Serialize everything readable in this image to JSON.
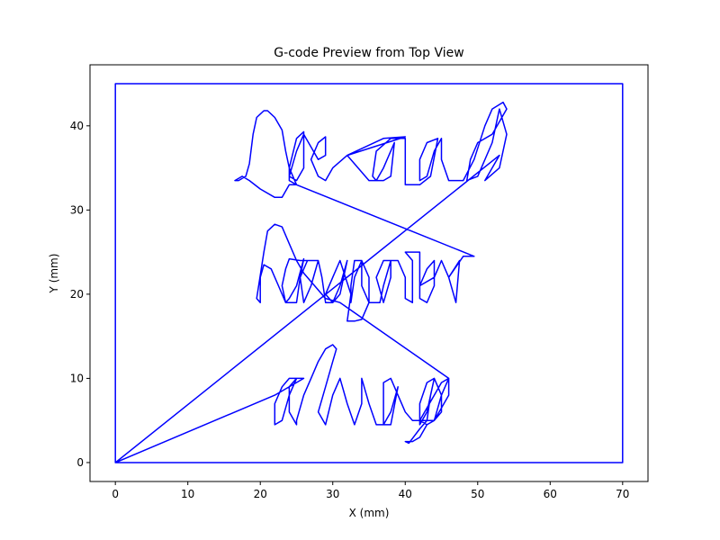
{
  "chart_data": {
    "type": "line",
    "title": "G-code Preview from Top View",
    "xlabel": "X (mm)",
    "ylabel": "Y (mm)",
    "xlim": [
      -3.5,
      73.5
    ],
    "ylim": [
      -2.25,
      47.25
    ],
    "xticks": [
      0,
      10,
      20,
      30,
      40,
      50,
      60,
      70
    ],
    "yticks": [
      0,
      10,
      20,
      30,
      40
    ],
    "grid": false,
    "line_color": "#0000ff",
    "series": [
      {
        "points": [
          [
            0,
            0
          ],
          [
            0,
            45
          ],
          [
            70,
            45
          ],
          [
            70,
            0
          ],
          [
            0,
            0
          ],
          [
            53,
            36.5
          ],
          [
            51,
            33.5
          ],
          [
            53,
            35
          ],
          [
            54,
            39
          ],
          [
            53,
            42
          ],
          [
            52,
            38
          ],
          [
            50,
            34
          ],
          [
            48.5,
            33.5
          ],
          [
            49,
            36
          ],
          [
            50,
            38
          ],
          [
            52,
            39
          ],
          [
            54,
            42
          ],
          [
            53.5,
            42.8
          ],
          [
            52,
            42
          ],
          [
            51,
            40
          ],
          [
            49.5,
            36
          ],
          [
            48,
            33.5
          ],
          [
            46,
            33.5
          ],
          [
            45,
            36
          ],
          [
            45,
            38.5
          ],
          [
            44,
            37
          ],
          [
            43,
            34
          ],
          [
            42,
            33.5
          ],
          [
            42,
            36
          ],
          [
            43,
            38
          ],
          [
            44.5,
            38.5
          ],
          [
            43.5,
            34
          ],
          [
            42,
            33
          ],
          [
            40,
            33
          ],
          [
            40,
            38.5
          ],
          [
            38,
            38.5
          ],
          [
            36,
            37
          ],
          [
            35.5,
            34
          ],
          [
            36,
            33.5
          ],
          [
            37,
            35
          ],
          [
            38.5,
            38
          ],
          [
            38,
            34
          ],
          [
            37,
            33.5
          ],
          [
            35,
            33.5
          ],
          [
            32,
            36.5
          ],
          [
            37,
            38.5
          ],
          [
            40,
            38.7
          ],
          [
            32,
            36.5
          ],
          [
            30,
            35
          ],
          [
            29,
            33.5
          ],
          [
            28,
            34
          ],
          [
            27,
            36
          ],
          [
            28,
            38
          ],
          [
            29,
            38.7
          ],
          [
            29,
            36.5
          ],
          [
            28,
            36
          ],
          [
            26,
            39
          ],
          [
            25,
            37
          ],
          [
            24,
            34
          ],
          [
            25,
            33.5
          ],
          [
            26,
            35
          ],
          [
            26,
            39.3
          ],
          [
            25,
            38.5
          ],
          [
            24,
            35
          ],
          [
            24,
            33.5
          ],
          [
            25,
            33
          ],
          [
            24,
            33
          ],
          [
            23,
            31.5
          ],
          [
            22,
            31.5
          ],
          [
            20,
            32.5
          ],
          [
            18.5,
            33.5
          ],
          [
            17.5,
            34
          ],
          [
            16.5,
            33.5
          ],
          [
            17,
            33.5
          ],
          [
            18,
            34
          ],
          [
            18.5,
            35.5
          ],
          [
            19,
            39
          ],
          [
            19.5,
            41
          ],
          [
            20.5,
            41.8
          ],
          [
            21,
            41.8
          ],
          [
            22,
            41
          ],
          [
            23,
            39.5
          ],
          [
            23.5,
            37
          ],
          [
            24,
            35
          ],
          [
            25,
            33
          ],
          [
            49.5,
            24.5
          ],
          [
            49,
            24.5
          ],
          [
            48,
            24.5
          ],
          [
            46,
            22
          ],
          [
            47,
            19
          ],
          [
            47.5,
            24
          ],
          [
            46,
            22
          ],
          [
            45,
            24
          ],
          [
            44,
            22
          ],
          [
            42,
            21
          ],
          [
            43,
            23
          ],
          [
            44,
            24
          ],
          [
            44,
            21
          ],
          [
            43,
            19
          ],
          [
            42,
            19.5
          ],
          [
            42,
            25
          ],
          [
            40,
            25
          ],
          [
            41,
            24
          ],
          [
            41,
            19
          ],
          [
            40,
            19.5
          ],
          [
            40,
            22
          ],
          [
            39,
            24
          ],
          [
            37,
            24
          ],
          [
            36,
            22
          ],
          [
            37,
            19
          ],
          [
            38,
            22
          ],
          [
            38,
            24
          ],
          [
            37,
            21
          ],
          [
            36.5,
            19
          ],
          [
            35,
            19
          ],
          [
            35,
            22
          ],
          [
            34,
            24
          ],
          [
            33,
            24
          ],
          [
            32.5,
            21
          ],
          [
            32.5,
            19
          ],
          [
            33,
            22
          ],
          [
            34,
            24
          ],
          [
            34,
            21
          ],
          [
            35,
            19
          ],
          [
            34,
            17
          ],
          [
            33,
            16.8
          ],
          [
            32,
            16.8
          ],
          [
            32.5,
            20
          ],
          [
            31,
            24
          ],
          [
            30,
            22
          ],
          [
            29,
            20
          ],
          [
            30,
            19
          ],
          [
            31,
            21
          ],
          [
            32,
            24
          ],
          [
            31,
            20
          ],
          [
            30,
            19
          ],
          [
            29,
            19
          ],
          [
            28.5,
            22
          ],
          [
            28,
            24
          ],
          [
            26.5,
            24
          ],
          [
            25.5,
            22
          ],
          [
            26,
            19
          ],
          [
            27,
            21
          ],
          [
            28,
            24
          ],
          [
            25.5,
            24
          ],
          [
            24,
            24.2
          ],
          [
            23.5,
            23
          ],
          [
            23,
            21
          ],
          [
            23.5,
            19
          ],
          [
            24,
            19.5
          ],
          [
            25,
            21
          ],
          [
            26,
            24.2
          ],
          [
            25.5,
            22
          ],
          [
            25,
            19
          ],
          [
            23.5,
            19
          ],
          [
            22.5,
            21
          ],
          [
            21.5,
            23
          ],
          [
            20.5,
            23.5
          ],
          [
            20,
            22
          ],
          [
            20,
            19
          ],
          [
            19.5,
            19.5
          ],
          [
            20.5,
            25
          ],
          [
            21,
            27.5
          ],
          [
            22,
            28.3
          ],
          [
            23,
            28
          ],
          [
            24,
            26
          ],
          [
            25,
            24
          ],
          [
            26,
            22.5
          ],
          [
            29,
            19.5
          ],
          [
            31,
            19
          ],
          [
            46,
            10
          ],
          [
            45,
            9.5
          ],
          [
            44,
            8
          ],
          [
            43,
            6.5
          ],
          [
            42,
            5
          ],
          [
            43,
            4.5
          ],
          [
            44,
            5
          ],
          [
            45,
            8
          ],
          [
            46,
            10
          ],
          [
            46,
            8
          ],
          [
            44,
            5
          ],
          [
            43,
            4.5
          ],
          [
            42,
            3
          ],
          [
            41,
            2.5
          ],
          [
            40,
            2.5
          ],
          [
            40.5,
            2.3
          ],
          [
            42,
            4
          ],
          [
            43,
            5
          ],
          [
            44,
            5
          ],
          [
            45,
            6
          ],
          [
            45,
            8
          ],
          [
            44,
            10
          ],
          [
            43,
            9.5
          ],
          [
            42,
            7
          ],
          [
            42,
            4.5
          ],
          [
            43,
            6
          ],
          [
            44,
            10
          ],
          [
            43.5,
            8
          ],
          [
            43,
            5
          ],
          [
            41,
            5
          ],
          [
            40,
            6
          ],
          [
            39,
            8
          ],
          [
            38,
            10
          ],
          [
            37,
            9.5
          ],
          [
            37,
            7
          ],
          [
            37,
            4.5
          ],
          [
            38,
            6
          ],
          [
            39,
            9
          ],
          [
            38,
            4.5
          ],
          [
            36,
            4.5
          ],
          [
            35,
            7
          ],
          [
            34,
            10
          ],
          [
            34,
            7
          ],
          [
            33,
            4.5
          ],
          [
            32,
            7
          ],
          [
            31,
            10
          ],
          [
            30,
            8
          ],
          [
            29,
            4.5
          ],
          [
            28,
            6
          ],
          [
            29,
            9
          ],
          [
            30,
            12
          ],
          [
            30.5,
            13.5
          ],
          [
            30,
            14
          ],
          [
            29,
            13.5
          ],
          [
            28,
            12
          ],
          [
            27,
            10
          ],
          [
            26,
            8
          ],
          [
            25,
            5
          ],
          [
            25,
            4.5
          ],
          [
            24,
            6
          ],
          [
            24,
            9
          ],
          [
            25,
            10
          ],
          [
            24,
            8
          ],
          [
            23,
            5
          ],
          [
            22,
            4.5
          ],
          [
            22,
            7
          ],
          [
            23,
            9
          ],
          [
            24,
            10
          ],
          [
            26,
            10
          ],
          [
            22,
            8
          ],
          [
            0,
            0
          ]
        ]
      }
    ]
  }
}
